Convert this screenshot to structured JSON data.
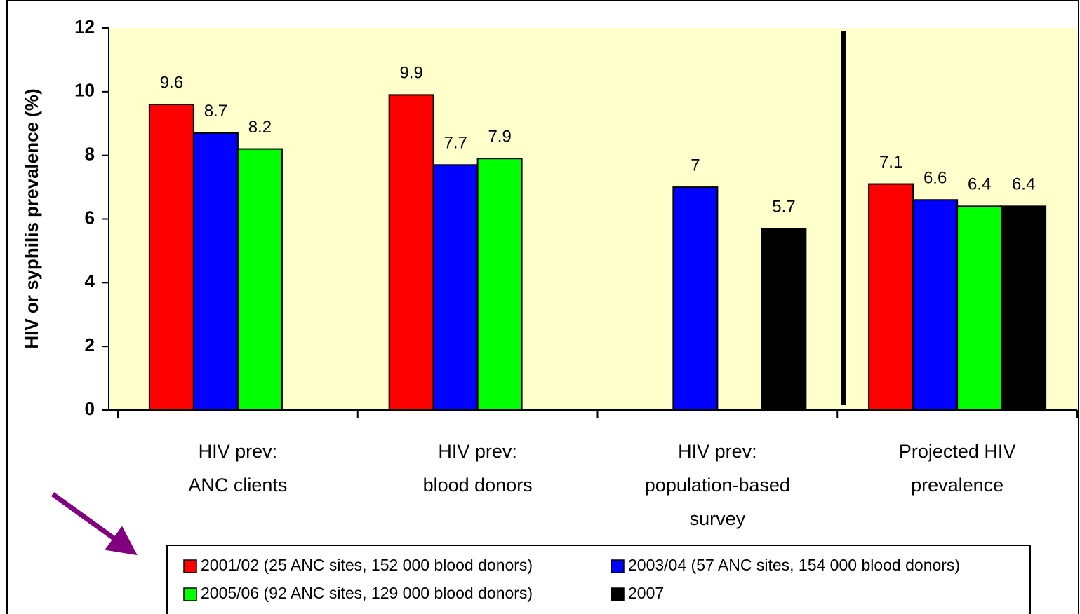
{
  "chart_data": {
    "type": "bar",
    "y_label": "HIV or syphilis prevalence (%)",
    "categories": [
      "HIV prev:\nANC clients",
      "HIV prev:\nblood donors",
      "HIV prev:\npopulation-based\nsurvey",
      "Projected HIV\nprevalence"
    ],
    "series": [
      {
        "name": "2001/02 (25 ANC sites, 152 000 blood donors)",
        "color": "#ff0000",
        "values": [
          9.6,
          9.9,
          null,
          7.1
        ]
      },
      {
        "name": "2003/04 (57 ANC sites, 154 000 blood donors)",
        "color": "#0000ff",
        "values": [
          8.7,
          7.7,
          7,
          6.6
        ]
      },
      {
        "name": "2005/06 (92 ANC sites, 129 000 blood donors)",
        "color": "#00ff00",
        "values": [
          8.2,
          7.9,
          null,
          6.4
        ]
      },
      {
        "name": "2007",
        "color": "#000000",
        "values": [
          null,
          null,
          5.7,
          6.4
        ]
      }
    ],
    "ylim": [
      0,
      12
    ],
    "yticks": [
      0,
      2,
      4,
      6,
      8,
      10,
      12
    ],
    "grid": false,
    "legend": "bottom",
    "plot_background": "#ffffcc"
  }
}
